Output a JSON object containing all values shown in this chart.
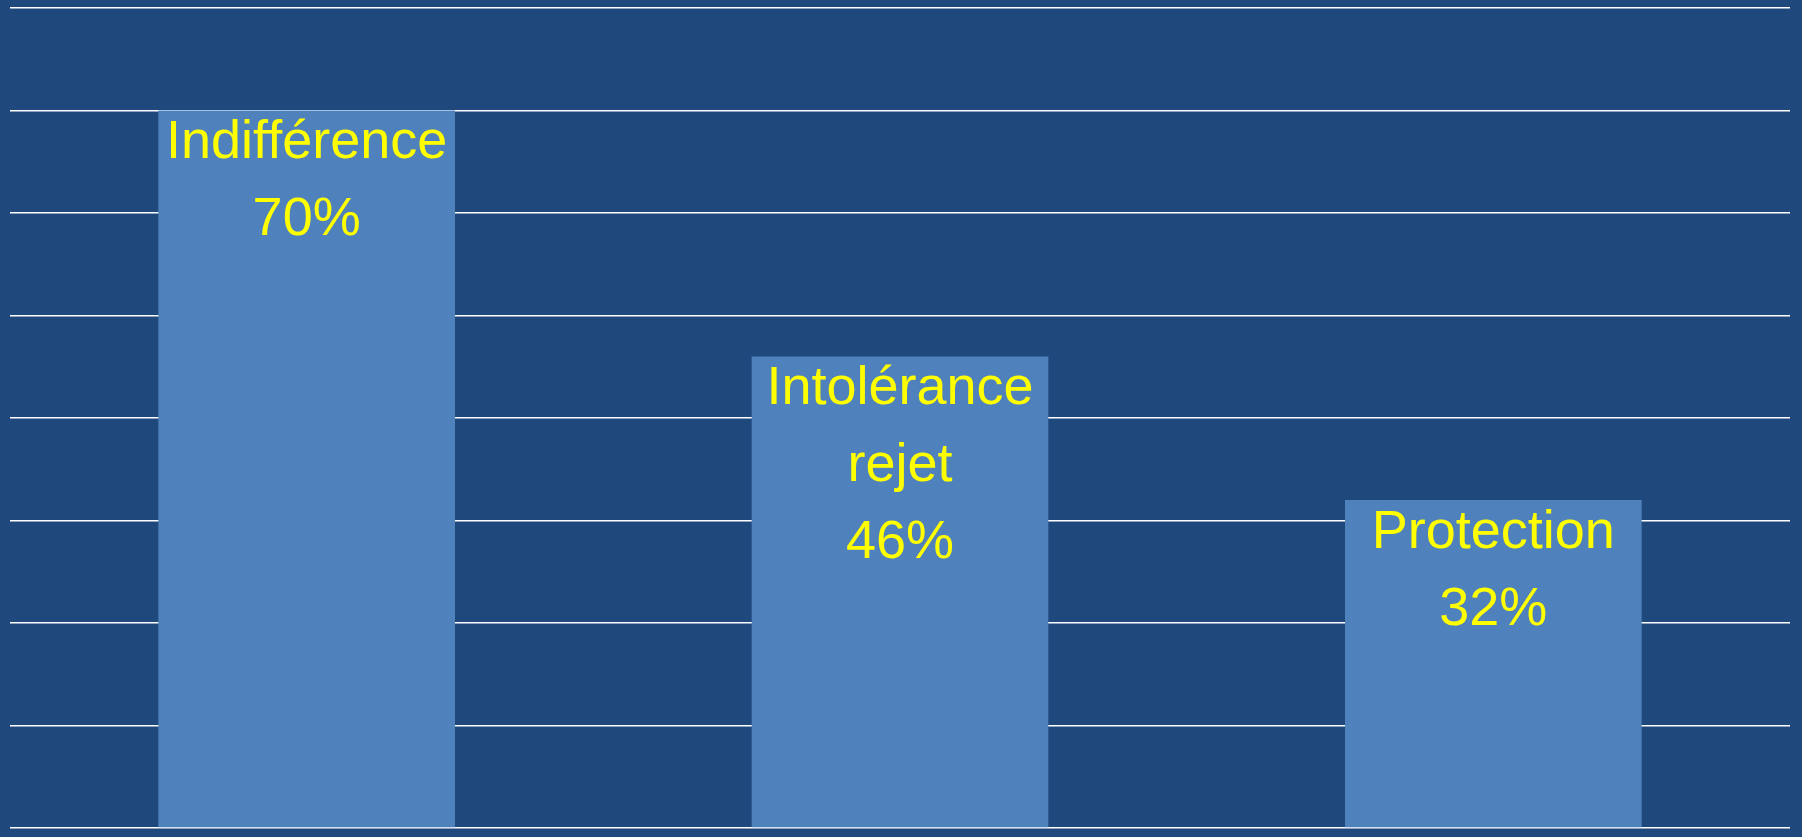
{
  "chart_data": {
    "type": "bar",
    "categories": [
      "Indifférence",
      "Intolérance rejet",
      "Protection"
    ],
    "values": [
      70,
      46,
      32
    ],
    "value_labels": [
      "70%",
      "46%",
      "32%"
    ],
    "color": "#4f81bd",
    "ylim": [
      0,
      80
    ],
    "yticks": [
      {
        "value": 0,
        "label": null
      },
      {
        "value": 10,
        "label": null
      },
      {
        "value": 20,
        "label": null
      },
      {
        "value": 30,
        "label": null
      },
      {
        "value": 40,
        "label": null
      },
      {
        "value": 50,
        "label": null
      },
      {
        "value": 60,
        "label": null
      },
      {
        "value": 70,
        "label": null
      },
      {
        "value": 80,
        "label": null
      }
    ],
    "grid": "y",
    "tick_labels": false,
    "legend": false
  }
}
